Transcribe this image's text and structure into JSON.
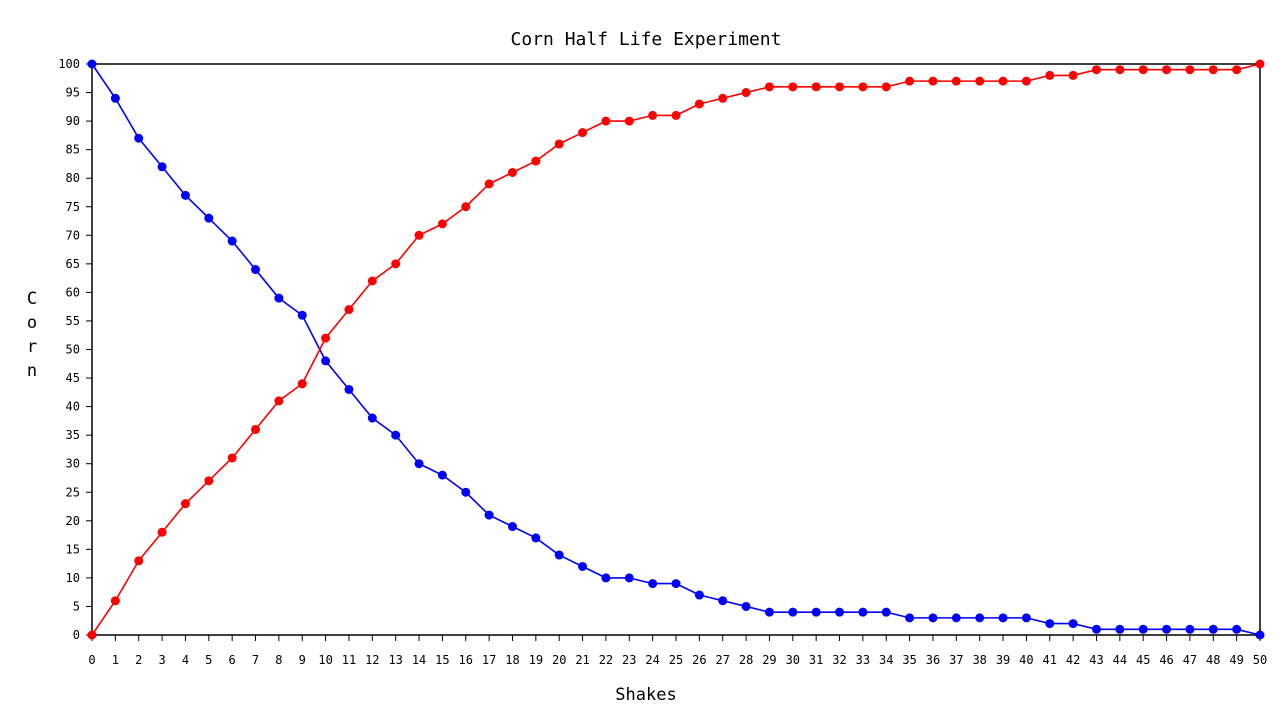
{
  "chart_data": {
    "type": "line",
    "title": "Corn Half Life Experiment",
    "xlabel": "Shakes",
    "ylabel": "Corn",
    "x": [
      0,
      1,
      2,
      3,
      4,
      5,
      6,
      7,
      8,
      9,
      10,
      11,
      12,
      13,
      14,
      15,
      16,
      17,
      18,
      19,
      20,
      21,
      22,
      23,
      24,
      25,
      26,
      27,
      28,
      29,
      30,
      31,
      32,
      33,
      34,
      35,
      36,
      37,
      38,
      39,
      40,
      41,
      42,
      43,
      44,
      45,
      46,
      47,
      48,
      49,
      50
    ],
    "xlim": [
      0,
      50
    ],
    "ylim": [
      0,
      100
    ],
    "ytick_step": 5,
    "grid": false,
    "series": [
      {
        "color": "#0000ff",
        "values": [
          100,
          94,
          87,
          82,
          77,
          73,
          69,
          64,
          59,
          56,
          48,
          43,
          38,
          35,
          30,
          28,
          25,
          21,
          19,
          17,
          14,
          12,
          10,
          10,
          9,
          9,
          7,
          6,
          5,
          4,
          4,
          4,
          4,
          4,
          4,
          3,
          3,
          3,
          3,
          3,
          3,
          2,
          2,
          1,
          1,
          1,
          1,
          1,
          1,
          1,
          0
        ]
      },
      {
        "color": "#ff0000",
        "values": [
          0,
          6,
          13,
          18,
          23,
          27,
          31,
          36,
          41,
          44,
          52,
          57,
          62,
          65,
          70,
          72,
          75,
          79,
          81,
          83,
          86,
          88,
          90,
          90,
          91,
          91,
          93,
          94,
          95,
          96,
          96,
          96,
          96,
          96,
          96,
          97,
          97,
          97,
          97,
          97,
          97,
          98,
          98,
          99,
          99,
          99,
          99,
          99,
          99,
          99,
          100
        ]
      }
    ]
  }
}
